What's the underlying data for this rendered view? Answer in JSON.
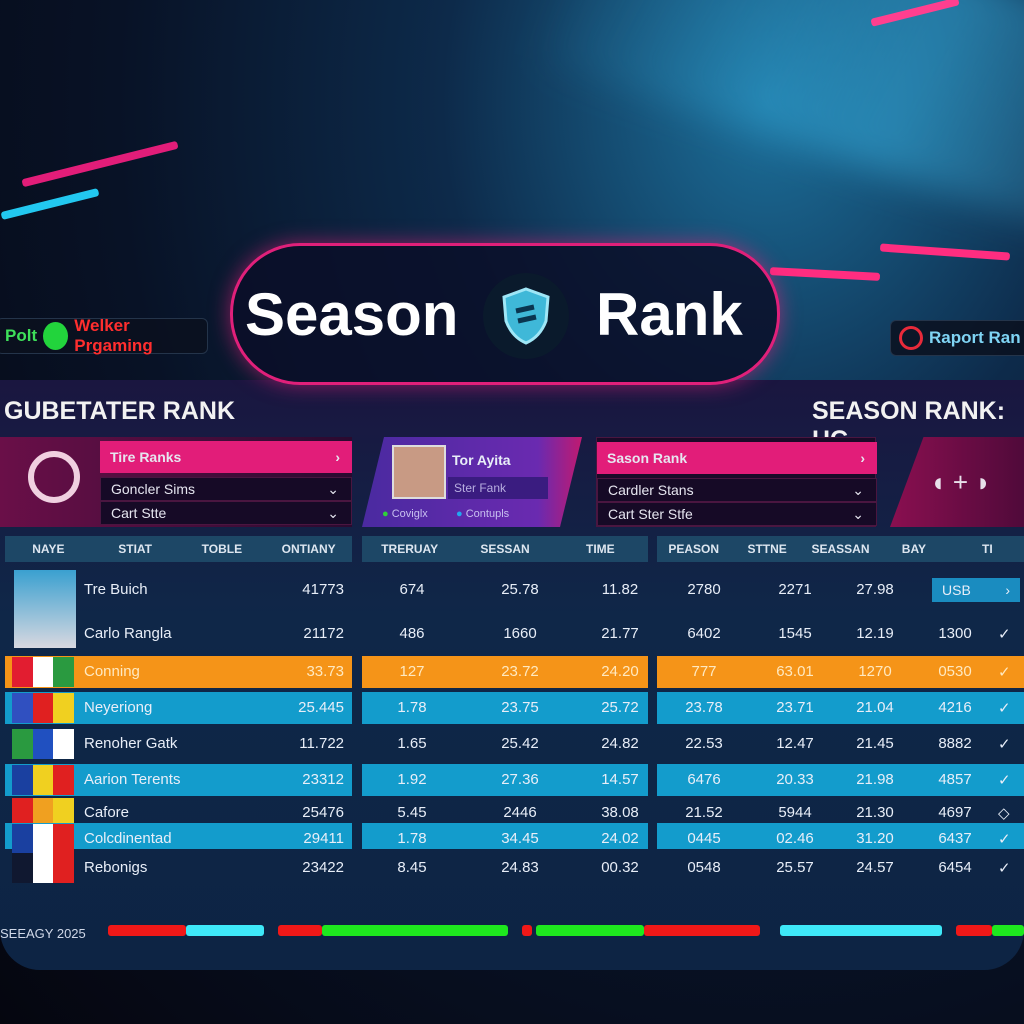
{
  "title": {
    "left": "Season",
    "right": "Rank"
  },
  "badges": {
    "left_prefix": "Polt",
    "left": "Welker Prgaming",
    "right": "Raport Ran"
  },
  "headings": {
    "left": "GUBETATER RANK",
    "right": "SEASON RANK: HC"
  },
  "card_left": {
    "active": "Tire Ranks",
    "select1": "Goncler Sims",
    "select2": "Cart Stte"
  },
  "card_player": {
    "name": "Tor Ayita",
    "sub": "Ster Fank",
    "status1": "Coviglx",
    "status2": "Contupls",
    "status1_color": "#2fd13a",
    "status2_color": "#22a8f0"
  },
  "card_right": {
    "active": "Sason Rank",
    "select1": "Cardler Stans",
    "select2": "Cart Ster Stfe"
  },
  "columns": {
    "left": [
      "NAYE",
      "STIAT",
      "TOBLE",
      "ONTIANY"
    ],
    "middle": [
      "TRERUAY",
      "SESSAN",
      "TIME"
    ],
    "right": [
      "PEASON",
      "STTNE",
      "SEASSAN",
      "BAY",
      "TI"
    ]
  },
  "rows": [
    {
      "name": "Tre Buich",
      "style": "plain",
      "left": "41773",
      "middle": [
        "674",
        "25.78",
        "11.82"
      ],
      "right": [
        "2780",
        "2271",
        "27.98"
      ],
      "tag": "USB",
      "action": "›"
    },
    {
      "name": "Carlo Rangla",
      "style": "plain",
      "left": "21172",
      "middle": [
        "486",
        "1660",
        "21.77"
      ],
      "right": [
        "6402",
        "1545",
        "12.19",
        "1300"
      ],
      "action": "✓"
    },
    {
      "name": "Conning",
      "style": "orange",
      "left": "33.73",
      "middle": [
        "127",
        "23.72",
        "24.20"
      ],
      "right": [
        "777",
        "63.01",
        "1270",
        "0530"
      ],
      "action": "✓"
    },
    {
      "name": "Neyeriong",
      "style": "blue",
      "left": "25.445",
      "middle": [
        "1.78",
        "23.75",
        "25.72"
      ],
      "right": [
        "23.78",
        "23.71",
        "21.04",
        "4216"
      ],
      "action": "✓"
    },
    {
      "name": "Renoher Gatk",
      "style": "plain",
      "left": "11.722",
      "middle": [
        "1.65",
        "25.42",
        "24.82"
      ],
      "right": [
        "22.53",
        "12.47",
        "21.45",
        "8882"
      ],
      "action": "✓"
    },
    {
      "name": "Aarion Terents",
      "style": "blue",
      "left": "23312",
      "middle": [
        "1.92",
        "27.36",
        "14.57"
      ],
      "right": [
        "6476",
        "20.33",
        "21.98",
        "4857"
      ],
      "action": "✓"
    },
    {
      "name": "Cafore",
      "style": "plain",
      "left": "25476",
      "middle": [
        "5.45",
        "2446",
        "38.08"
      ],
      "right": [
        "21.52",
        "5944",
        "21.30",
        "4697"
      ],
      "action": "◇"
    },
    {
      "name": "Colcdinentad",
      "style": "blue",
      "left": "29411",
      "middle": [
        "1.78",
        "34.45",
        "24.02"
      ],
      "right": [
        "0445",
        "02.46",
        "31.20",
        "6437"
      ],
      "action": "✓"
    },
    {
      "name": "Rebonigs",
      "style": "plain",
      "left": "23422",
      "middle": [
        "8.45",
        "24.83",
        "00.32"
      ],
      "right": [
        "0548",
        "25.57",
        "24.57",
        "6454"
      ],
      "action": "✓"
    }
  ],
  "footer": {
    "label": "SEEAGY 2025"
  },
  "colors": {
    "accent": "#e21d79",
    "orange": "#f59418",
    "blue": "#139ccc",
    "red": "#f01818",
    "green": "#1ee81e",
    "cyan": "#3ee8f8"
  }
}
